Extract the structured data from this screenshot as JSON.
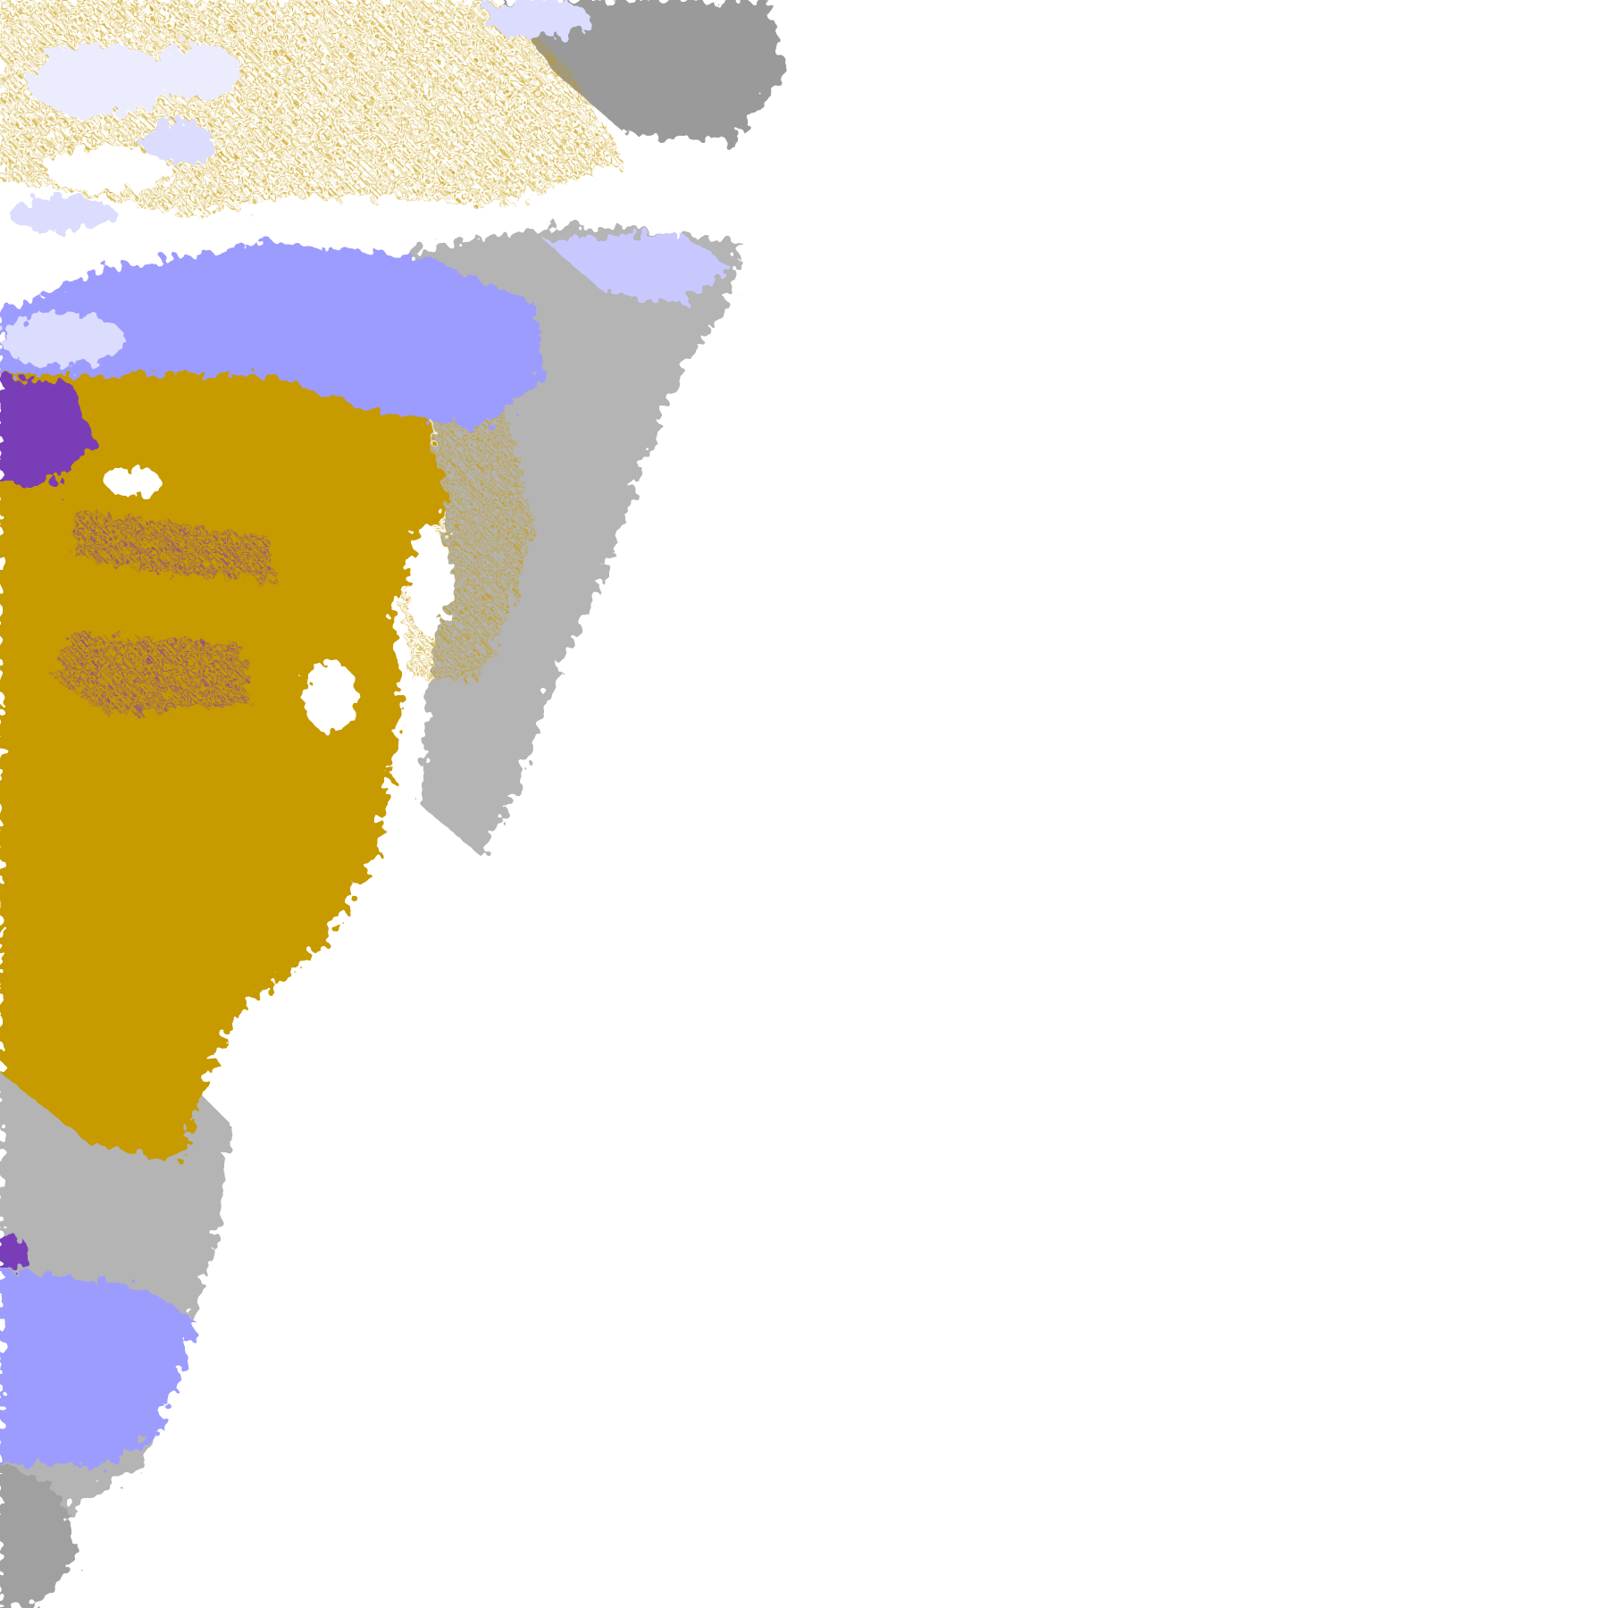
{
  "map": {
    "type": "classified raster overlay tile",
    "background": "#ffffff",
    "classes": [
      {
        "id": "gold",
        "color": "#c79a00"
      },
      {
        "id": "purple",
        "color": "#7a3cb8"
      },
      {
        "id": "gray-dark",
        "color": "#8c8c8c"
      },
      {
        "id": "gray-light",
        "color": "#b4b4b4"
      },
      {
        "id": "lavender",
        "color": "#9c9cff"
      },
      {
        "id": "lavender-light",
        "color": "#c8c8ff"
      },
      {
        "id": "lavender-pale",
        "color": "#ececff"
      }
    ]
  }
}
